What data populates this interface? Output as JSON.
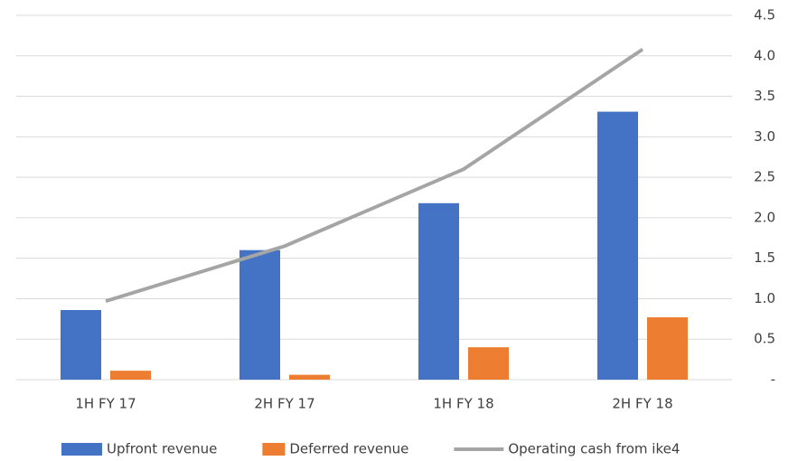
{
  "chart_data": {
    "type": "bar",
    "categories": [
      "1H FY 17",
      "2H FY 17",
      "1H FY 18",
      "2H FY 18"
    ],
    "series": [
      {
        "name": "Upfront revenue",
        "color": "#4472c4",
        "values": [
          0.86,
          1.6,
          2.18,
          3.31
        ]
      },
      {
        "name": "Deferred revenue",
        "color": "#ed7d31",
        "values": [
          0.11,
          0.06,
          0.4,
          0.77
        ]
      },
      {
        "name": "Operating cash from ike4",
        "color": "#a5a5a5",
        "type": "line",
        "values": [
          0.97,
          1.65,
          2.6,
          4.08
        ]
      }
    ],
    "ylim": [
      0,
      4.5
    ],
    "yticks": [
      {
        "value": 0,
        "label": "-"
      },
      0.5,
      {
        "value": 1,
        "label": "1.0"
      },
      1.5,
      {
        "value": 2,
        "label": "2.0"
      },
      2.5,
      {
        "value": 3,
        "label": "3.0"
      },
      3.5,
      {
        "value": 4,
        "label": "4.0"
      },
      4.5
    ],
    "grid": true,
    "legend": "bottom"
  }
}
